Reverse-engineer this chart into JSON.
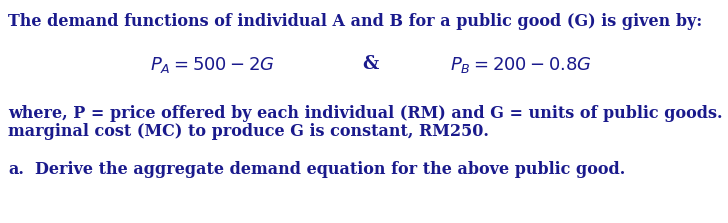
{
  "bg_color": "#ffffff",
  "text_color": "#1a1a8c",
  "line1": "The demand functions of individual A and B for a public good (G) is given by:",
  "eq_PA": "$P_A = 500 - 2G$",
  "eq_amp": "&",
  "eq_PB": "$P_B = 200 - 0.8G$",
  "line3a": "where, P = price offered by each individual (RM) and G = units of public goods. Suppose the",
  "line3b": "marginal cost (MC) to produce G is constant, RM250.",
  "line4a": "a.",
  "line4b": "Derive the aggregate demand equation for the above public good.",
  "font_family": "DejaVu Serif",
  "fontsize_body": 11.5,
  "fontsize_eq": 13.0,
  "fig_width": 7.28,
  "fig_height": 2.23,
  "dpi": 100
}
